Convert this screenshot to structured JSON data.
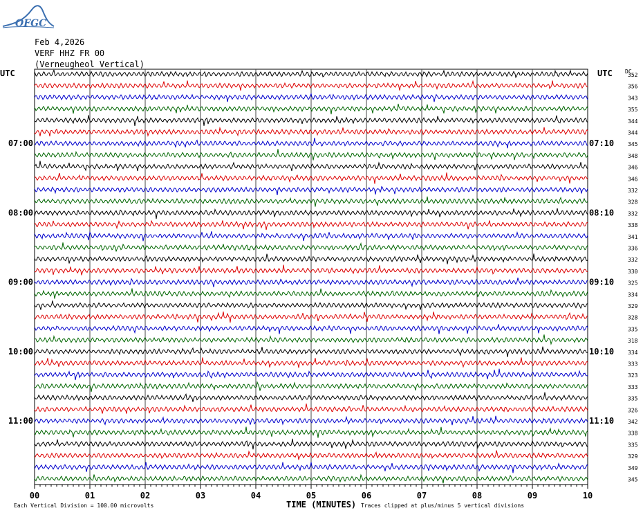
{
  "logo": {
    "text": "OFGC"
  },
  "header": {
    "date": "Feb 4,2026",
    "station": "VERF HHZ FR 00",
    "location": "(Verneugheol Vertical)"
  },
  "labels": {
    "left_utc": "UTC",
    "right_utc": "UTC",
    "dc_header": "DC",
    "footer_left": "Each Vertical Division =  100.00 microvolts",
    "footer_right": "Traces clipped at plus/minus 5 vertical divisions"
  },
  "colors": {
    "trace_cycle": [
      "#000000",
      "#dd0000",
      "#0000cc",
      "#006600"
    ],
    "grid": "#000000",
    "logo": "#3b6fb0"
  },
  "chart_data": {
    "type": "line",
    "title": "",
    "xlabel": "TIME (MINUTES)",
    "ylabel": "",
    "xlim": [
      0,
      10
    ],
    "x_ticks": [
      "00",
      "01",
      "02",
      "03",
      "04",
      "05",
      "06",
      "07",
      "08",
      "09",
      "10"
    ],
    "grid": true,
    "trace_count": 36,
    "left_time_labels": [
      {
        "row": 6,
        "text": "07:00"
      },
      {
        "row": 12,
        "text": "08:00"
      },
      {
        "row": 18,
        "text": "09:00"
      },
      {
        "row": 24,
        "text": "10:00"
      },
      {
        "row": 30,
        "text": "11:00"
      }
    ],
    "right_time_labels": [
      {
        "row": 6,
        "text": "07:10"
      },
      {
        "row": 12,
        "text": "08:10"
      },
      {
        "row": 18,
        "text": "09:10"
      },
      {
        "row": 24,
        "text": "10:10"
      },
      {
        "row": 30,
        "text": "11:10"
      }
    ],
    "dc_offsets": [
      352,
      356,
      343,
      355,
      344,
      344,
      345,
      348,
      346,
      346,
      332,
      328,
      332,
      338,
      341,
      336,
      332,
      330,
      325,
      334,
      329,
      328,
      335,
      318,
      334,
      333,
      323,
      333,
      335,
      326,
      342,
      338,
      335,
      329,
      349,
      345
    ]
  }
}
